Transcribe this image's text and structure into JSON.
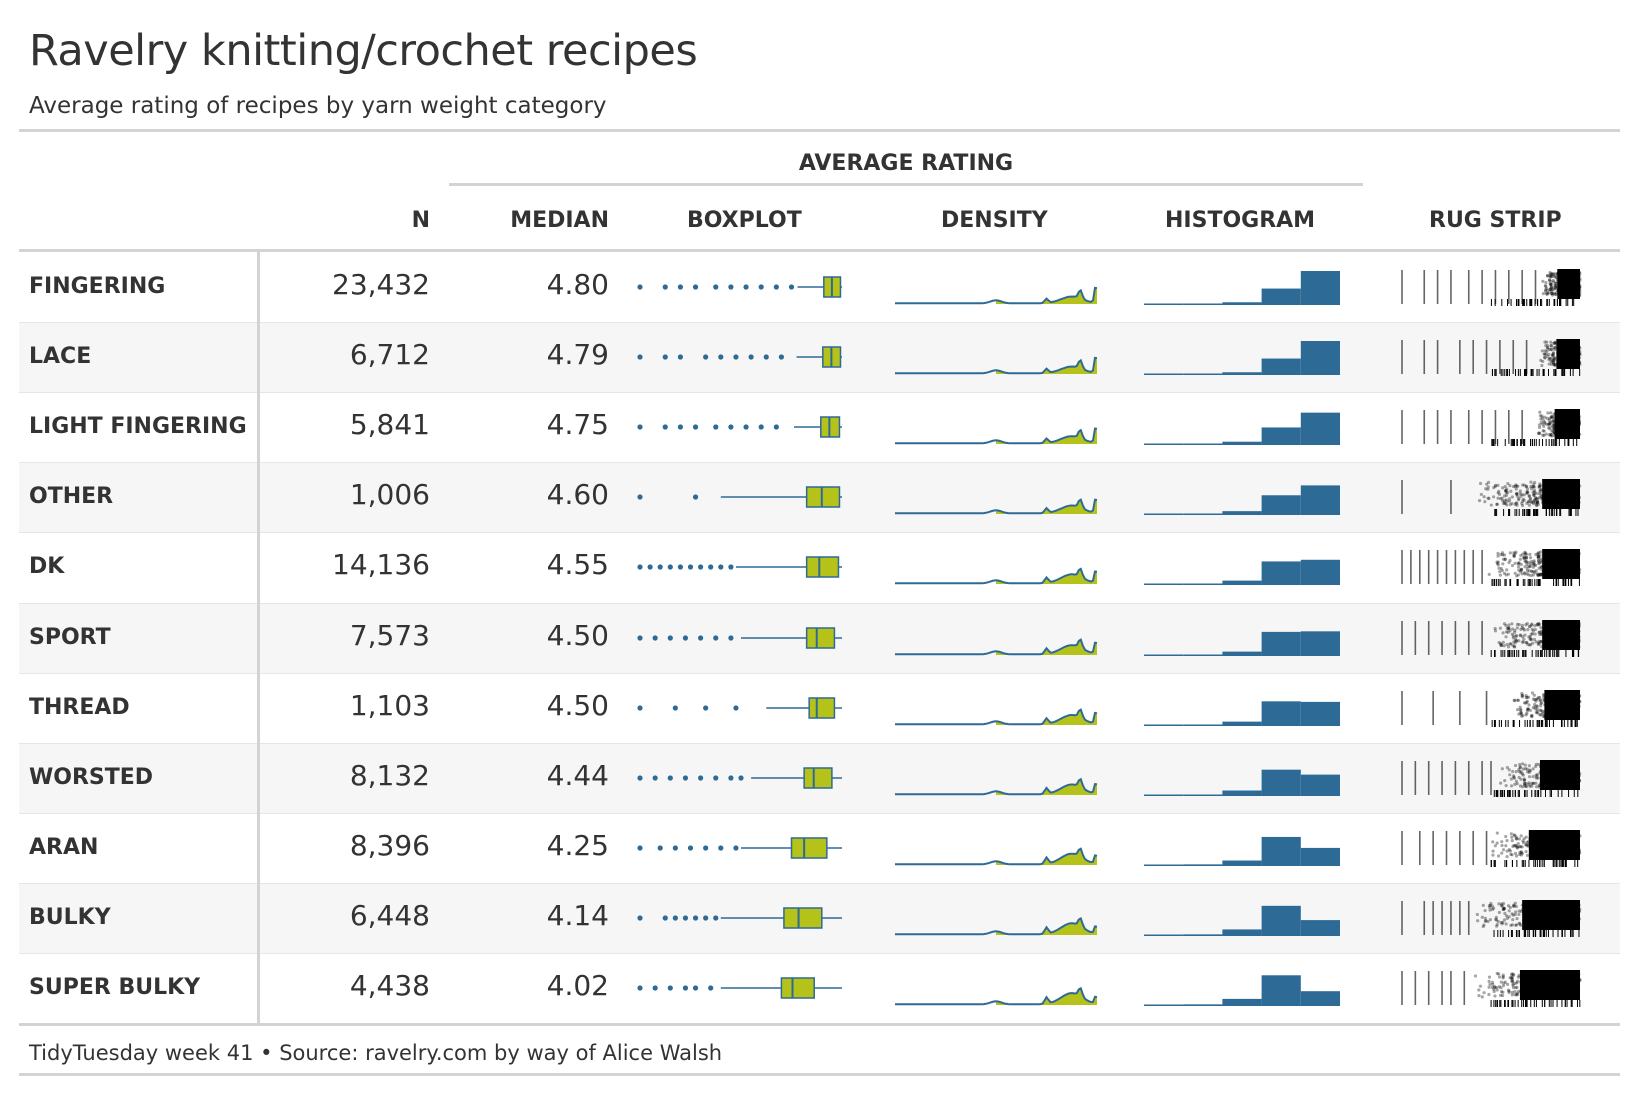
{
  "title": "Ravelry knitting/crochet recipes",
  "subtitle": "Average rating of recipes by yarn weight category",
  "spanner_label": "AVERAGE RATING",
  "columns": {
    "n": "N",
    "median": "MEDIAN",
    "boxplot": "BOXPLOT",
    "density": "DENSITY",
    "histogram": "HISTOGRAM",
    "rug": "RUG STRIP"
  },
  "footer": "TidyTuesday week 41 • Source: ravelry.com by way of Alice Walsh",
  "colors": {
    "blue": "#2E6A96",
    "lime": "#B5C219",
    "text": "#333333",
    "rule": "#D3D3D3",
    "stripe": "#F6F6F6"
  },
  "chart_data": {
    "type": "table",
    "rating_range": [
      1,
      5
    ],
    "rows": [
      {
        "category": "FINGERING",
        "n": "23,432",
        "median": "4.80",
        "q1": 4.64,
        "q3": 4.97,
        "whisker_lo": 4.12,
        "whisker_hi": 5.0,
        "outliers": [
          1.0,
          1.5,
          1.8,
          2.1,
          2.5,
          2.8,
          3.1,
          3.4,
          3.7,
          4.0
        ],
        "hist": [
          0.0,
          0.01,
          0.02,
          0.05,
          0.3,
          0.62
        ]
      },
      {
        "category": "LACE",
        "n": "6,712",
        "median": "4.79",
        "q1": 4.62,
        "q3": 4.97,
        "whisker_lo": 4.1,
        "whisker_hi": 5.0,
        "outliers": [
          1.0,
          1.5,
          1.8,
          2.3,
          2.6,
          2.9,
          3.2,
          3.5,
          3.8
        ],
        "hist": [
          0.0,
          0.01,
          0.02,
          0.05,
          0.3,
          0.62
        ]
      },
      {
        "category": "LIGHT FINGERING",
        "n": "5,841",
        "median": "4.75",
        "q1": 4.58,
        "q3": 4.95,
        "whisker_lo": 4.05,
        "whisker_hi": 5.0,
        "outliers": [
          1.0,
          1.5,
          1.8,
          2.1,
          2.5,
          2.8,
          3.1,
          3.4,
          3.7
        ],
        "hist": [
          0.0,
          0.01,
          0.02,
          0.06,
          0.32,
          0.59
        ]
      },
      {
        "category": "OTHER",
        "n": "1,006",
        "median": "4.60",
        "q1": 4.3,
        "q3": 4.95,
        "whisker_lo": 2.6,
        "whisker_hi": 5.0,
        "outliers": [
          1.0,
          2.1
        ],
        "hist": [
          0.0,
          0.01,
          0.02,
          0.07,
          0.36,
          0.54
        ]
      },
      {
        "category": "DK",
        "n": "14,136",
        "median": "4.55",
        "q1": 4.3,
        "q3": 4.93,
        "whisker_lo": 2.9,
        "whisker_hi": 5.0,
        "outliers": [
          1.0,
          1.2,
          1.4,
          1.6,
          1.8,
          2.0,
          2.2,
          2.4,
          2.6,
          2.8
        ],
        "hist": [
          0.0,
          0.01,
          0.02,
          0.08,
          0.43,
          0.46
        ]
      },
      {
        "category": "SPORT",
        "n": "7,573",
        "median": "4.50",
        "q1": 4.3,
        "q3": 4.85,
        "whisker_lo": 3.0,
        "whisker_hi": 5.0,
        "outliers": [
          1.0,
          1.3,
          1.6,
          1.9,
          2.2,
          2.5,
          2.8
        ],
        "hist": [
          0.0,
          0.01,
          0.02,
          0.08,
          0.44,
          0.45
        ]
      },
      {
        "category": "THREAD",
        "n": "1,103",
        "median": "4.50",
        "q1": 4.35,
        "q3": 4.85,
        "whisker_lo": 3.5,
        "whisker_hi": 5.0,
        "outliers": [
          1.0,
          1.7,
          2.3,
          2.9
        ],
        "hist": [
          0.0,
          0.01,
          0.02,
          0.08,
          0.45,
          0.44
        ]
      },
      {
        "category": "WORSTED",
        "n": "8,132",
        "median": "4.44",
        "q1": 4.25,
        "q3": 4.8,
        "whisker_lo": 3.2,
        "whisker_hi": 5.0,
        "outliers": [
          1.0,
          1.3,
          1.6,
          1.9,
          2.2,
          2.5,
          2.8,
          3.0
        ],
        "hist": [
          0.0,
          0.01,
          0.02,
          0.1,
          0.48,
          0.39
        ]
      },
      {
        "category": "ARAN",
        "n": "8,396",
        "median": "4.25",
        "q1": 4.0,
        "q3": 4.7,
        "whisker_lo": 3.0,
        "whisker_hi": 5.0,
        "outliers": [
          1.0,
          1.4,
          1.7,
          2.0,
          2.3,
          2.6,
          2.9
        ],
        "hist": [
          0.0,
          0.01,
          0.03,
          0.1,
          0.53,
          0.33
        ]
      },
      {
        "category": "BULKY",
        "n": "6,448",
        "median": "4.14",
        "q1": 3.85,
        "q3": 4.6,
        "whisker_lo": 2.6,
        "whisker_hi": 5.0,
        "outliers": [
          1.0,
          1.5,
          1.7,
          1.9,
          2.1,
          2.3,
          2.5
        ],
        "hist": [
          0.0,
          0.01,
          0.03,
          0.12,
          0.55,
          0.29
        ]
      },
      {
        "category": "SUPER BULKY",
        "n": "4,438",
        "median": "4.02",
        "q1": 3.8,
        "q3": 4.45,
        "whisker_lo": 2.6,
        "whisker_hi": 5.0,
        "outliers": [
          1.0,
          1.3,
          1.6,
          1.9,
          2.1,
          2.4
        ],
        "hist": [
          0.0,
          0.01,
          0.03,
          0.13,
          0.56,
          0.27
        ]
      }
    ]
  }
}
